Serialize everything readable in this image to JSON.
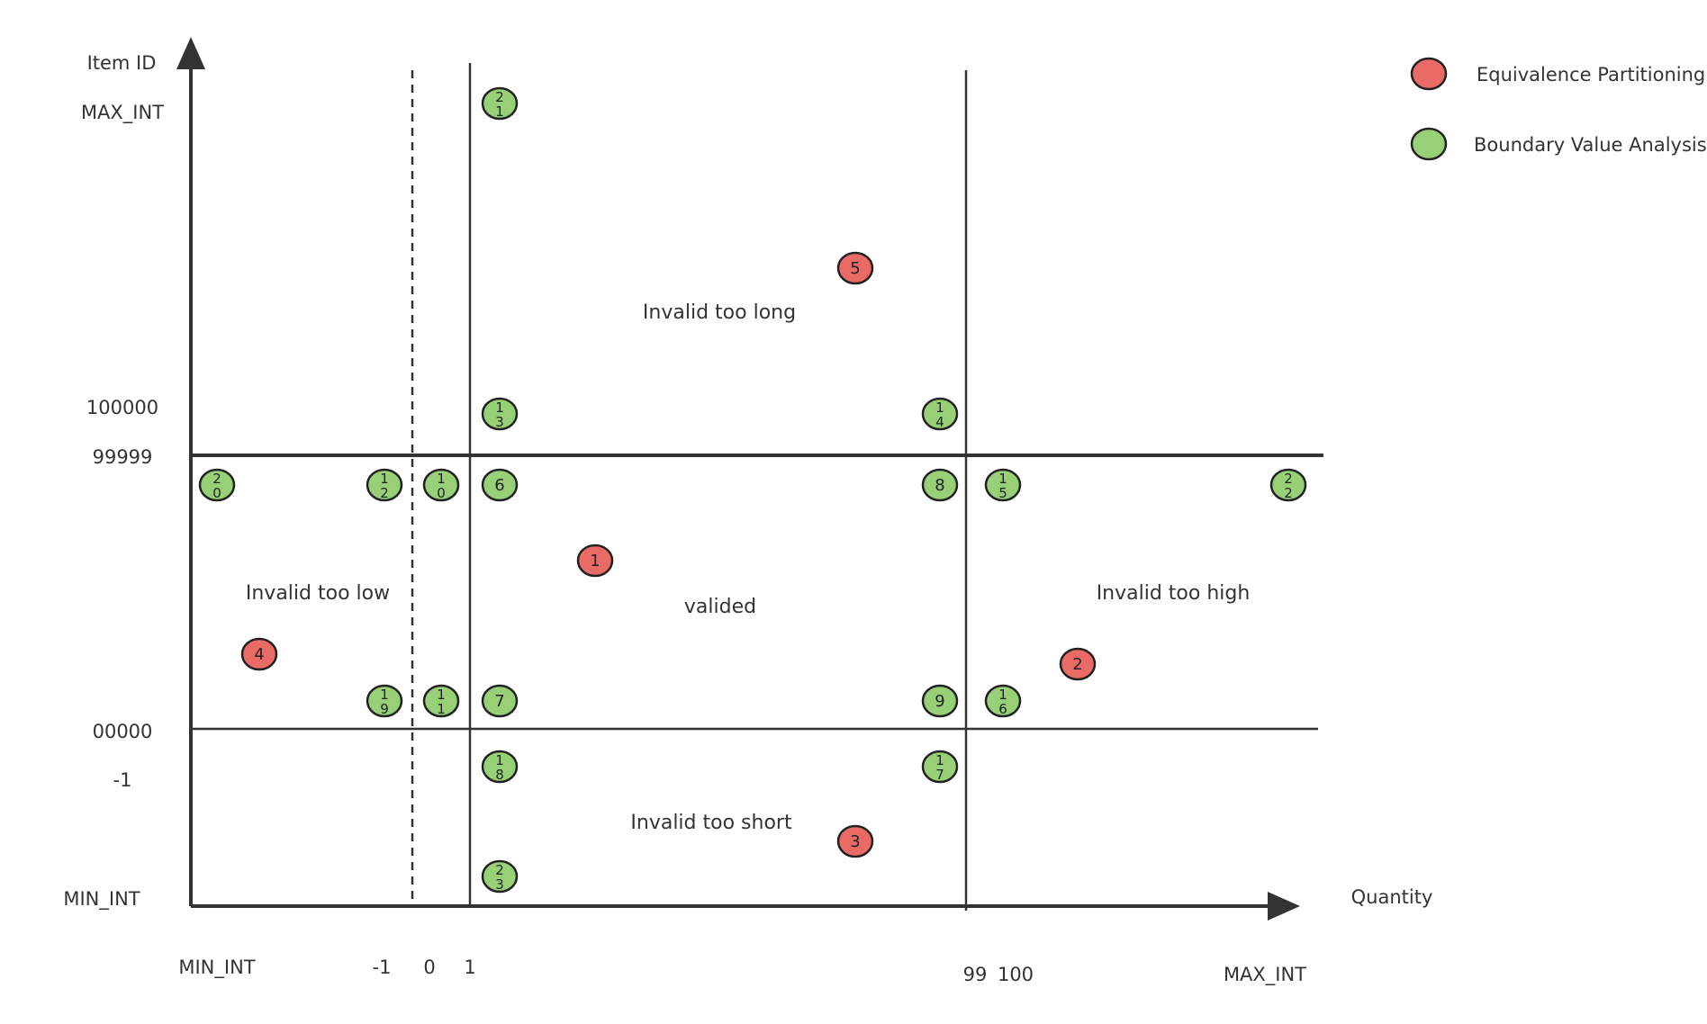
{
  "axes": {
    "y_title": "Item ID",
    "x_title": "Quantity",
    "y_ticks": [
      "MAX_INT",
      "100000",
      "99999",
      "00000",
      "-1",
      "MIN_INT"
    ],
    "x_ticks": [
      "MIN_INT",
      "-1",
      "0",
      "1",
      "99",
      "100",
      "MAX_INT"
    ]
  },
  "regions": {
    "too_long": "Invalid too long",
    "too_low": "Invalid too low",
    "valid": "valided",
    "too_high": "Invalid too high",
    "too_short": "Invalid too short"
  },
  "legend": {
    "ep": "Equivalence Partitioning",
    "bva": "Boundary Value Analysis"
  },
  "colors": {
    "ep": "#ea6b66",
    "bva": "#97d077",
    "stroke": "#222222"
  },
  "nodes": [
    {
      "label": "21",
      "kind": "bva"
    },
    {
      "label": "5",
      "kind": "ep"
    },
    {
      "label": "13",
      "kind": "bva"
    },
    {
      "label": "14",
      "kind": "bva"
    },
    {
      "label": "20",
      "kind": "bva"
    },
    {
      "label": "12",
      "kind": "bva"
    },
    {
      "label": "10",
      "kind": "bva"
    },
    {
      "label": "6",
      "kind": "bva"
    },
    {
      "label": "8",
      "kind": "bva"
    },
    {
      "label": "15",
      "kind": "bva"
    },
    {
      "label": "22",
      "kind": "bva"
    },
    {
      "label": "1",
      "kind": "ep"
    },
    {
      "label": "4",
      "kind": "ep"
    },
    {
      "label": "2",
      "kind": "ep"
    },
    {
      "label": "19",
      "kind": "bva"
    },
    {
      "label": "11",
      "kind": "bva"
    },
    {
      "label": "7",
      "kind": "bva"
    },
    {
      "label": "9",
      "kind": "bva"
    },
    {
      "label": "16",
      "kind": "bva"
    },
    {
      "label": "18",
      "kind": "bva"
    },
    {
      "label": "17",
      "kind": "bva"
    },
    {
      "label": "3",
      "kind": "ep"
    },
    {
      "label": "23",
      "kind": "bva"
    }
  ]
}
